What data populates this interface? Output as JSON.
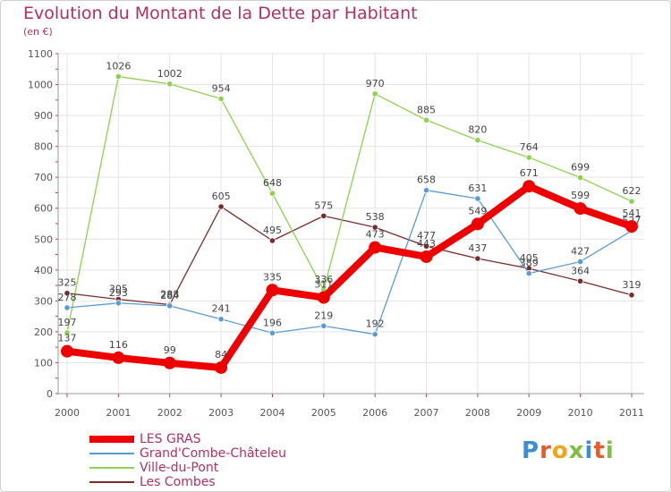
{
  "header": {
    "title": "Evolution du Montant de la Dette par Habitant",
    "subtitle": "(en €)"
  },
  "logo": {
    "text": "Proxiti"
  },
  "chart_data": {
    "type": "line",
    "title": "Evolution du Montant de la Dette par Habitant",
    "ylabel": "(en €)",
    "xlabel": "",
    "x": [
      "2000",
      "2001",
      "2002",
      "2003",
      "2004",
      "2005",
      "2006",
      "2007",
      "2008",
      "2009",
      "2010",
      "2011"
    ],
    "ylim": [
      0,
      1100
    ],
    "yticks": [
      0,
      100,
      200,
      300,
      400,
      500,
      600,
      700,
      800,
      900,
      1000,
      1100
    ],
    "grid": true,
    "legend_position": "bottom-left",
    "series": [
      {
        "name": "LES GRAS",
        "color": "#ee0000",
        "values": [
          137,
          116,
          99,
          84,
          335,
          311,
          473,
          443,
          549,
          671,
          599,
          541
        ]
      },
      {
        "name": "Grand'Combe-Châteleu",
        "color": "#5b9bd5",
        "values": [
          278,
          293,
          284,
          241,
          196,
          219,
          192,
          658,
          631,
          389,
          427,
          527
        ]
      },
      {
        "name": "Ville-du-Pont",
        "color": "#8ed14f",
        "values": [
          197,
          1026,
          1002,
          954,
          648,
          336,
          970,
          885,
          820,
          764,
          699,
          622
        ]
      },
      {
        "name": "Les Combes",
        "color": "#7a2a2a",
        "values": [
          325,
          305,
          288,
          605,
          495,
          575,
          538,
          477,
          437,
          405,
          364,
          319
        ]
      }
    ]
  }
}
